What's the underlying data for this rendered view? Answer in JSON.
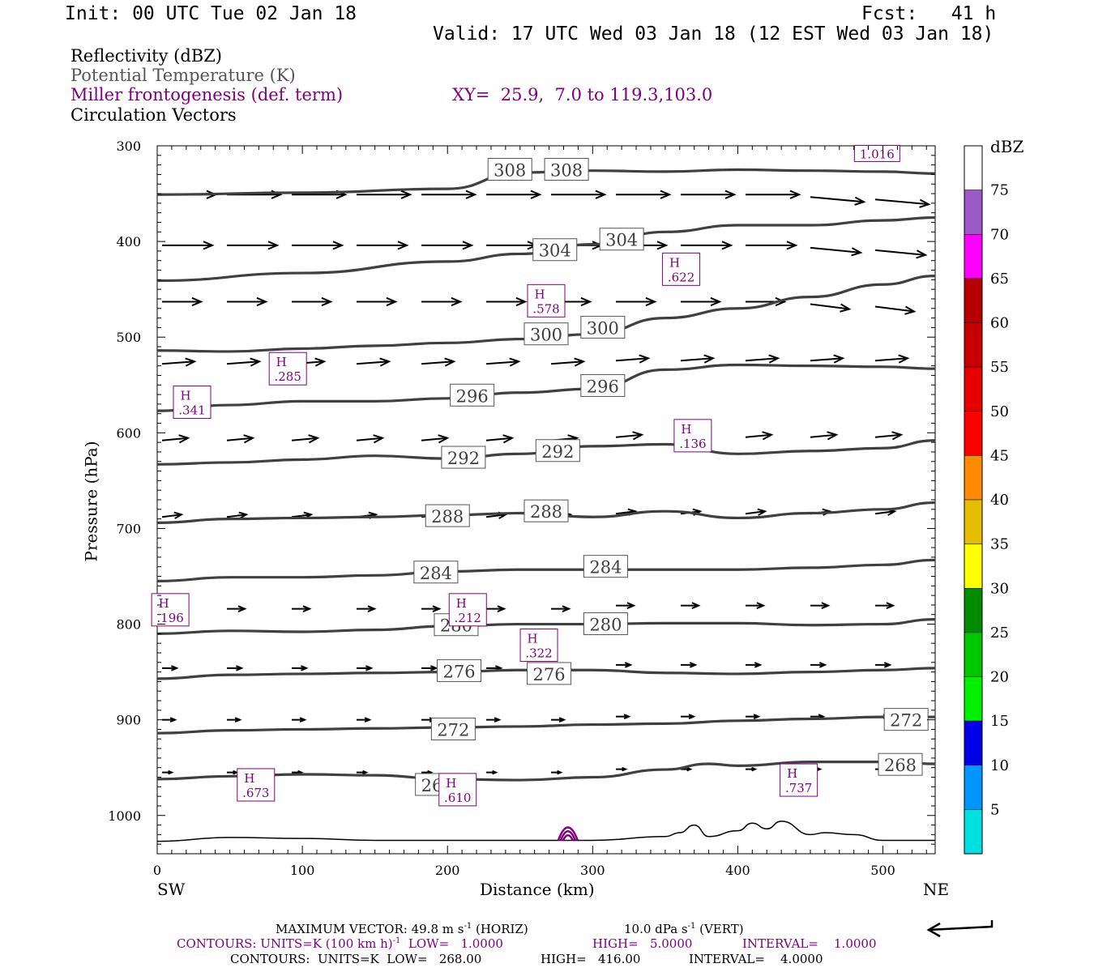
{
  "header": {
    "init": "Init: 00 UTC Tue 02 Jan 18",
    "fcst": "Fcst:   41 h",
    "valid": "Valid: 17 UTC Wed 03 Jan 18 (12 EST Wed 03 Jan 18)"
  },
  "legend": {
    "line1": "Reflectivity (dBZ)",
    "line2": "Potential Temperature (K)",
    "line3": "Miller frontogenesis (def. term)",
    "xy": "XY=  25.9,  7.0 to 119.3,103.0",
    "line4": "Circulation Vectors"
  },
  "colors": {
    "theta": "#404040",
    "fronto": "#800080",
    "vector": "#000000",
    "terrain": "#000000"
  },
  "chart_data": {
    "type": "line",
    "xlabel": "Distance (km)",
    "ylabel": "Pressure (hPa)",
    "xlim": [
      0,
      536
    ],
    "ylim": [
      1040,
      300
    ],
    "x_ticks": [
      "0",
      "100",
      "200",
      "300",
      "400",
      "500"
    ],
    "y_ticks": [
      "300",
      "400",
      "500",
      "600",
      "700",
      "800",
      "900",
      "1000"
    ],
    "left_end": "SW",
    "right_end": "NE",
    "theta_contours": [
      {
        "value": 308,
        "x": [
          0,
          100,
          200,
          250,
          300,
          350,
          400,
          450,
          500,
          536
        ],
        "p": [
          351,
          349,
          345,
          328,
          326,
          327,
          325,
          326,
          327,
          329
        ]
      },
      {
        "value": 304,
        "x": [
          0,
          100,
          200,
          250,
          300,
          350,
          400,
          450,
          500,
          536
        ],
        "p": [
          441,
          433,
          421,
          413,
          403,
          390,
          383,
          383,
          378,
          375
        ]
      },
      {
        "value": 300,
        "x": [
          0,
          50,
          100,
          150,
          200,
          250,
          300,
          350,
          400,
          450,
          500,
          536
        ],
        "p": [
          514,
          515,
          512,
          509,
          506,
          502,
          497,
          480,
          470,
          458,
          445,
          436
        ]
      },
      {
        "value": 296,
        "x": [
          0,
          50,
          100,
          150,
          200,
          250,
          300,
          350,
          400,
          450,
          500,
          536
        ],
        "p": [
          577,
          571,
          567,
          567,
          564,
          558,
          554,
          534,
          529,
          530,
          531,
          533
        ]
      },
      {
        "value": 292,
        "x": [
          0,
          50,
          100,
          150,
          200,
          250,
          300,
          350,
          400,
          450,
          500,
          536
        ],
        "p": [
          633,
          631,
          628,
          624,
          627,
          622,
          614,
          612,
          622,
          619,
          616,
          608
        ]
      },
      {
        "value": 288,
        "x": [
          0,
          50,
          100,
          150,
          200,
          250,
          300,
          350,
          400,
          450,
          500,
          536
        ],
        "p": [
          694,
          690,
          689,
          688,
          686,
          684,
          688,
          682,
          689,
          684,
          680,
          673
        ]
      },
      {
        "value": 284,
        "x": [
          0,
          50,
          100,
          150,
          200,
          250,
          300,
          350,
          400,
          450,
          500,
          536
        ],
        "p": [
          755,
          751,
          751,
          749,
          745,
          743,
          743,
          743,
          743,
          741,
          738,
          733
        ]
      },
      {
        "value": 280,
        "x": [
          0,
          50,
          100,
          150,
          200,
          250,
          300,
          350,
          400,
          450,
          500,
          536
        ],
        "p": [
          810,
          807,
          808,
          806,
          802,
          800,
          800,
          799,
          799,
          801,
          800,
          795
        ]
      },
      {
        "value": 276,
        "x": [
          0,
          50,
          100,
          150,
          200,
          250,
          300,
          350,
          400,
          450,
          500,
          536
        ],
        "p": [
          857,
          853,
          852,
          851,
          850,
          848,
          848,
          851,
          852,
          850,
          848,
          846
        ]
      },
      {
        "value": 272,
        "x": [
          0,
          50,
          100,
          150,
          200,
          250,
          300,
          350,
          400,
          450,
          500,
          536
        ],
        "p": [
          914,
          911,
          910,
          909,
          908,
          907,
          905,
          904,
          901,
          899,
          897,
          897
        ]
      },
      {
        "value": 268,
        "x": [
          0,
          50,
          100,
          150,
          200,
          250,
          300,
          350,
          380,
          400,
          450,
          500,
          536
        ],
        "p": [
          962,
          959,
          957,
          958,
          962,
          963,
          960,
          952,
          946,
          948,
          944,
          944,
          946
        ]
      }
    ],
    "contour_labels": [
      {
        "text": "308",
        "x": 243,
        "p": 325
      },
      {
        "text": "308",
        "x": 282,
        "p": 325
      },
      {
        "text": "304",
        "x": 274,
        "p": 409
      },
      {
        "text": "304",
        "x": 320,
        "p": 398
      },
      {
        "text": "300",
        "x": 268,
        "p": 497
      },
      {
        "text": "300",
        "x": 307,
        "p": 490
      },
      {
        "text": "296",
        "x": 217,
        "p": 561
      },
      {
        "text": "296",
        "x": 307,
        "p": 551
      },
      {
        "text": "292",
        "x": 211,
        "p": 626
      },
      {
        "text": "292",
        "x": 276,
        "p": 619
      },
      {
        "text": "288",
        "x": 200,
        "p": 687
      },
      {
        "text": "288",
        "x": 268,
        "p": 682
      },
      {
        "text": "284",
        "x": 192,
        "p": 746
      },
      {
        "text": "284",
        "x": 309,
        "p": 740
      },
      {
        "text": "280",
        "x": 206,
        "p": 801
      },
      {
        "text": "280",
        "x": 309,
        "p": 800
      },
      {
        "text": "276",
        "x": 208,
        "p": 849
      },
      {
        "text": "276",
        "x": 270,
        "p": 852
      },
      {
        "text": "272",
        "x": 204,
        "p": 910
      },
      {
        "text": "272",
        "x": 516,
        "p": 900
      },
      {
        "text": "268",
        "x": 193,
        "p": 968
      },
      {
        "text": "268",
        "x": 512,
        "p": 947
      }
    ],
    "fronto_maxima": [
      {
        "label": "H",
        "value": "1.016",
        "x": 496,
        "p": 308
      },
      {
        "label": "H",
        "value": ".622",
        "x": 361,
        "p": 429
      },
      {
        "label": "H",
        "value": ".578",
        "x": 268,
        "p": 462
      },
      {
        "label": "H",
        "value": ".285",
        "x": 90,
        "p": 533
      },
      {
        "label": "H",
        "value": ".341",
        "x": 24,
        "p": 568
      },
      {
        "label": "H",
        "value": ".136",
        "x": 369,
        "p": 603
      },
      {
        "label": "H",
        "value": ".196",
        "x": 9,
        "p": 785
      },
      {
        "label": "H",
        "value": ".212",
        "x": 214,
        "p": 785
      },
      {
        "label": "H",
        "value": ".322",
        "x": 263,
        "p": 822
      },
      {
        "label": "H",
        "value": ".673",
        "x": 68,
        "p": 968
      },
      {
        "label": "H",
        "value": ".610",
        "x": 207,
        "p": 973
      },
      {
        "label": "H",
        "value": ".737",
        "x": 442,
        "p": 963
      }
    ],
    "terrain_profile": {
      "x": [
        0,
        50,
        100,
        150,
        200,
        250,
        300,
        350,
        360,
        370,
        380,
        400,
        410,
        420,
        430,
        450,
        460,
        480,
        500,
        536
      ],
      "p": [
        1027,
        1023,
        1024,
        1026,
        1026,
        1026,
        1026,
        1022,
        1018,
        1010,
        1022,
        1016,
        1008,
        1014,
        1006,
        1020,
        1018,
        1020,
        1026,
        1026
      ]
    },
    "colorbar": {
      "label": "dBZ",
      "ticks": [
        "5",
        "10",
        "15",
        "20",
        "25",
        "30",
        "35",
        "40",
        "45",
        "50",
        "55",
        "60",
        "65",
        "70",
        "75"
      ],
      "colors": [
        "#00e0e0",
        "#0096ff",
        "#0000e6",
        "#00f000",
        "#00c800",
        "#008c00",
        "#ffff00",
        "#e6be00",
        "#ff8c00",
        "#ff0000",
        "#e60000",
        "#c80000",
        "#b40000",
        "#ff00ff",
        "#9b59c8",
        "#ffffff"
      ]
    }
  },
  "footer": {
    "max_vector_a": "MAXIMUM VECTOR:  49.8 m s",
    "max_vector_exp": "-1",
    "max_vector_b": " (HORIZ)",
    "max_vector_c": "10.0 dPa s",
    "max_vector_d": " (VERT)",
    "contours1_a": "CONTOURS:  UNITS=K (100 km h)",
    "contours1_b": "  LOW=   1.0000",
    "contours1_c": "HIGH=   5.0000",
    "contours1_d": "INTERVAL=    1.0000",
    "contours2_a": "CONTOURS:  UNITS=K  LOW=   268.00",
    "contours2_b": "HIGH=   416.00",
    "contours2_c": "INTERVAL=    4.0000"
  }
}
